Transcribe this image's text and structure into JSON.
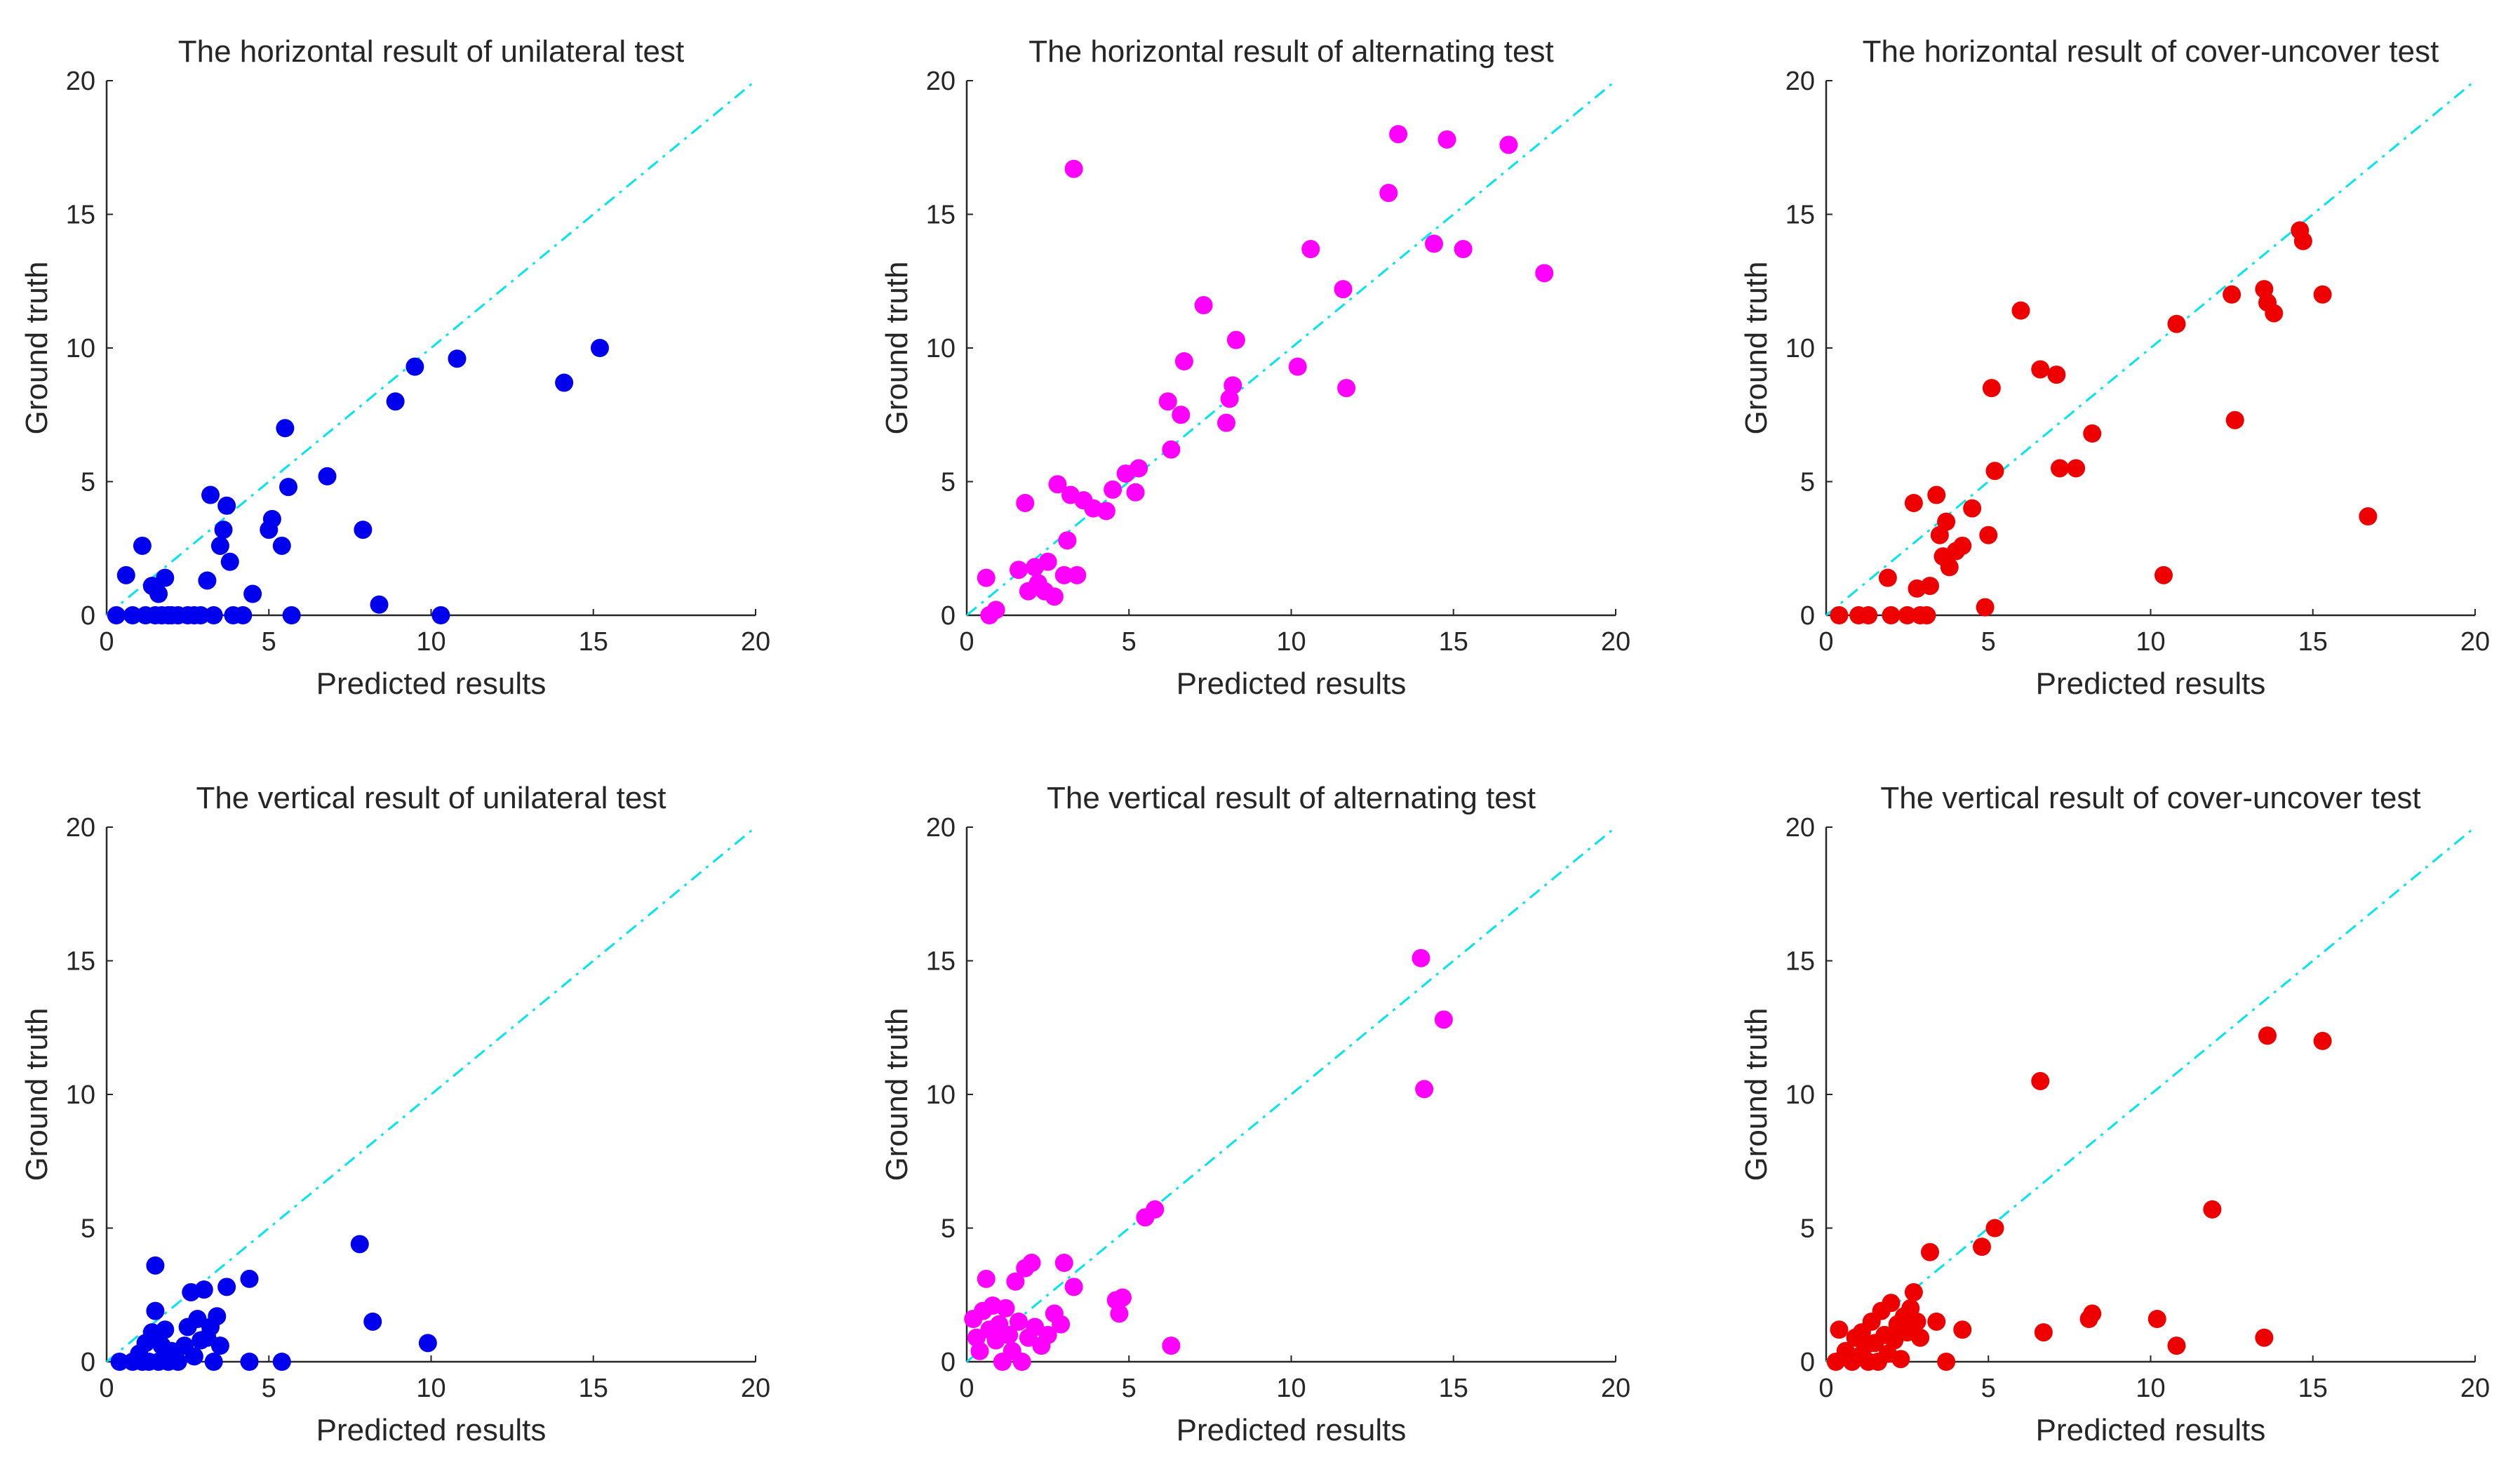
{
  "figure": {
    "xlim": [
      0,
      20
    ],
    "ylim": [
      0,
      20
    ],
    "ticks": [
      0,
      5,
      10,
      15,
      20
    ],
    "reference_line_color": "#00e5ee",
    "axis_color": "#262626"
  },
  "chart_data": [
    {
      "type": "scatter",
      "title": "The horizontal result of unilateral test",
      "xlabel": "Predicted results",
      "ylabel": "Ground truth",
      "xlim": [
        0,
        20
      ],
      "ylim": [
        0,
        20
      ],
      "color": "#0000ee",
      "points": [
        [
          0.3,
          0
        ],
        [
          0.6,
          1.5
        ],
        [
          0.8,
          0
        ],
        [
          1.1,
          2.6
        ],
        [
          1.2,
          0
        ],
        [
          1.4,
          1.1
        ],
        [
          1.5,
          0
        ],
        [
          1.6,
          0.8
        ],
        [
          1.7,
          0
        ],
        [
          1.8,
          1.4
        ],
        [
          1.9,
          0
        ],
        [
          2.0,
          0
        ],
        [
          2.2,
          0
        ],
        [
          2.5,
          0
        ],
        [
          2.7,
          0
        ],
        [
          2.9,
          0
        ],
        [
          3.1,
          1.3
        ],
        [
          3.2,
          4.5
        ],
        [
          3.3,
          0
        ],
        [
          3.5,
          2.6
        ],
        [
          3.6,
          3.2
        ],
        [
          3.7,
          4.1
        ],
        [
          3.8,
          2.0
        ],
        [
          3.9,
          0
        ],
        [
          4.2,
          0
        ],
        [
          4.5,
          0.8
        ],
        [
          5.0,
          3.2
        ],
        [
          5.1,
          3.6
        ],
        [
          5.4,
          2.6
        ],
        [
          5.5,
          7.0
        ],
        [
          5.6,
          4.8
        ],
        [
          5.7,
          0
        ],
        [
          6.8,
          5.2
        ],
        [
          7.9,
          3.2
        ],
        [
          8.4,
          0.4
        ],
        [
          8.9,
          8.0
        ],
        [
          9.5,
          9.3
        ],
        [
          10.3,
          0
        ],
        [
          10.8,
          9.6
        ],
        [
          14.1,
          8.7
        ],
        [
          15.2,
          10.0
        ]
      ]
    },
    {
      "type": "scatter",
      "title": "The horizontal result of alternating test",
      "xlabel": "Predicted results",
      "ylabel": "Ground truth",
      "xlim": [
        0,
        20
      ],
      "ylim": [
        0,
        20
      ],
      "color": "#ff00ff",
      "points": [
        [
          0.6,
          1.4
        ],
        [
          0.7,
          0
        ],
        [
          0.9,
          0.2
        ],
        [
          1.6,
          1.7
        ],
        [
          1.8,
          4.2
        ],
        [
          1.9,
          0.9
        ],
        [
          2.1,
          1.8
        ],
        [
          2.2,
          1.2
        ],
        [
          2.4,
          0.9
        ],
        [
          2.5,
          2.0
        ],
        [
          2.7,
          0.7
        ],
        [
          2.8,
          4.9
        ],
        [
          3.0,
          1.5
        ],
        [
          3.1,
          2.8
        ],
        [
          3.2,
          4.5
        ],
        [
          3.3,
          16.7
        ],
        [
          3.4,
          1.5
        ],
        [
          3.6,
          4.3
        ],
        [
          3.9,
          4.0
        ],
        [
          4.3,
          3.9
        ],
        [
          4.5,
          4.7
        ],
        [
          4.9,
          5.3
        ],
        [
          5.2,
          4.6
        ],
        [
          5.3,
          5.5
        ],
        [
          6.2,
          8.0
        ],
        [
          6.3,
          6.2
        ],
        [
          6.6,
          7.5
        ],
        [
          6.7,
          9.5
        ],
        [
          7.3,
          11.6
        ],
        [
          8.0,
          7.2
        ],
        [
          8.1,
          8.1
        ],
        [
          8.2,
          8.6
        ],
        [
          8.3,
          10.3
        ],
        [
          10.2,
          9.3
        ],
        [
          10.6,
          13.7
        ],
        [
          11.6,
          12.2
        ],
        [
          11.7,
          8.5
        ],
        [
          13.0,
          15.8
        ],
        [
          13.3,
          18.0
        ],
        [
          14.4,
          13.9
        ],
        [
          14.8,
          17.8
        ],
        [
          15.3,
          13.7
        ],
        [
          16.7,
          17.6
        ],
        [
          17.8,
          12.8
        ]
      ]
    },
    {
      "type": "scatter",
      "title": "The horizontal result of cover-uncover test",
      "xlabel": "Predicted results",
      "ylabel": "Ground truth",
      "xlim": [
        0,
        20
      ],
      "ylim": [
        0,
        20
      ],
      "color": "#ee0000",
      "points": [
        [
          0.4,
          0
        ],
        [
          1.0,
          0
        ],
        [
          1.3,
          0
        ],
        [
          1.9,
          1.4
        ],
        [
          2.0,
          0
        ],
        [
          2.5,
          0
        ],
        [
          2.7,
          4.2
        ],
        [
          2.8,
          1.0
        ],
        [
          2.9,
          0
        ],
        [
          3.1,
          0
        ],
        [
          3.2,
          1.1
        ],
        [
          3.4,
          4.5
        ],
        [
          3.5,
          3.0
        ],
        [
          3.6,
          2.2
        ],
        [
          3.7,
          3.5
        ],
        [
          3.8,
          1.8
        ],
        [
          4.0,
          2.4
        ],
        [
          4.2,
          2.6
        ],
        [
          4.5,
          4.0
        ],
        [
          4.9,
          0.3
        ],
        [
          5.0,
          3.0
        ],
        [
          5.1,
          8.5
        ],
        [
          5.2,
          5.4
        ],
        [
          6.0,
          11.4
        ],
        [
          6.6,
          9.2
        ],
        [
          7.1,
          9.0
        ],
        [
          7.2,
          5.5
        ],
        [
          7.7,
          5.5
        ],
        [
          8.2,
          6.8
        ],
        [
          10.4,
          1.5
        ],
        [
          10.8,
          10.9
        ],
        [
          12.5,
          12.0
        ],
        [
          12.6,
          7.3
        ],
        [
          13.5,
          12.2
        ],
        [
          13.6,
          11.7
        ],
        [
          13.8,
          11.3
        ],
        [
          14.6,
          14.4
        ],
        [
          14.7,
          14.0
        ],
        [
          15.3,
          12.0
        ],
        [
          16.7,
          3.7
        ]
      ]
    },
    {
      "type": "scatter",
      "title": "The vertical result of unilateral test",
      "xlabel": "Predicted results",
      "ylabel": "Ground truth",
      "xlim": [
        0,
        20
      ],
      "ylim": [
        0,
        20
      ],
      "color": "#0000ee",
      "points": [
        [
          0.4,
          0
        ],
        [
          0.8,
          0
        ],
        [
          1.0,
          0.3
        ],
        [
          1.1,
          0
        ],
        [
          1.2,
          0.7
        ],
        [
          1.3,
          0
        ],
        [
          1.4,
          1.1
        ],
        [
          1.5,
          3.6
        ],
        [
          1.5,
          1.9
        ],
        [
          1.6,
          0
        ],
        [
          1.7,
          0.6
        ],
        [
          1.8,
          1.2
        ],
        [
          1.9,
          0
        ],
        [
          2.0,
          0.4
        ],
        [
          2.2,
          0
        ],
        [
          2.4,
          0.6
        ],
        [
          2.5,
          1.3
        ],
        [
          2.6,
          2.6
        ],
        [
          2.7,
          0.2
        ],
        [
          2.8,
          1.6
        ],
        [
          2.9,
          0.8
        ],
        [
          3.0,
          2.7
        ],
        [
          3.1,
          0.9
        ],
        [
          3.2,
          1.3
        ],
        [
          3.3,
          0
        ],
        [
          3.4,
          1.7
        ],
        [
          3.5,
          0.6
        ],
        [
          3.7,
          2.8
        ],
        [
          4.4,
          3.1
        ],
        [
          4.4,
          0
        ],
        [
          5.4,
          0
        ],
        [
          7.8,
          4.4
        ],
        [
          8.2,
          1.5
        ],
        [
          9.9,
          0.7
        ]
      ]
    },
    {
      "type": "scatter",
      "title": "The vertical result of alternating test",
      "xlabel": "Predicted results",
      "ylabel": "Ground truth",
      "xlim": [
        0,
        20
      ],
      "ylim": [
        0,
        20
      ],
      "color": "#ff00ff",
      "points": [
        [
          0.2,
          1.6
        ],
        [
          0.3,
          0.9
        ],
        [
          0.4,
          0.4
        ],
        [
          0.5,
          1.9
        ],
        [
          0.6,
          3.1
        ],
        [
          0.7,
          1.2
        ],
        [
          0.8,
          2.1
        ],
        [
          0.9,
          0.8
        ],
        [
          1.0,
          1.4
        ],
        [
          1.1,
          0
        ],
        [
          1.2,
          2.0
        ],
        [
          1.3,
          1.0
        ],
        [
          1.4,
          0.4
        ],
        [
          1.5,
          3.0
        ],
        [
          1.6,
          1.5
        ],
        [
          1.7,
          0
        ],
        [
          1.8,
          3.5
        ],
        [
          1.9,
          0.9
        ],
        [
          2.0,
          3.7
        ],
        [
          2.1,
          1.3
        ],
        [
          2.3,
          0.6
        ],
        [
          2.5,
          1.0
        ],
        [
          2.7,
          1.8
        ],
        [
          2.9,
          1.4
        ],
        [
          3.0,
          3.7
        ],
        [
          3.3,
          2.8
        ],
        [
          4.6,
          2.3
        ],
        [
          4.7,
          1.8
        ],
        [
          4.8,
          2.4
        ],
        [
          5.5,
          5.4
        ],
        [
          5.8,
          5.7
        ],
        [
          6.3,
          0.6
        ],
        [
          14.0,
          15.1
        ],
        [
          14.1,
          10.2
        ],
        [
          14.7,
          12.8
        ]
      ]
    },
    {
      "type": "scatter",
      "title": "The vertical result of cover-uncover test",
      "xlabel": "Predicted results",
      "ylabel": "Ground truth",
      "xlim": [
        0,
        20
      ],
      "ylim": [
        0,
        20
      ],
      "color": "#ee0000",
      "points": [
        [
          0.3,
          0
        ],
        [
          0.4,
          1.2
        ],
        [
          0.6,
          0.4
        ],
        [
          0.8,
          0
        ],
        [
          0.9,
          0.9
        ],
        [
          1.0,
          0.2
        ],
        [
          1.1,
          1.1
        ],
        [
          1.2,
          0.6
        ],
        [
          1.3,
          0
        ],
        [
          1.4,
          1.5
        ],
        [
          1.5,
          0.7
        ],
        [
          1.6,
          0
        ],
        [
          1.7,
          1.9
        ],
        [
          1.8,
          1.0
        ],
        [
          1.9,
          0.3
        ],
        [
          2.0,
          2.2
        ],
        [
          2.1,
          0.8
        ],
        [
          2.2,
          1.4
        ],
        [
          2.3,
          0.1
        ],
        [
          2.4,
          1.7
        ],
        [
          2.5,
          1.1
        ],
        [
          2.6,
          2.0
        ],
        [
          2.7,
          2.6
        ],
        [
          2.8,
          1.5
        ],
        [
          2.9,
          0.9
        ],
        [
          3.2,
          4.1
        ],
        [
          3.4,
          1.5
        ],
        [
          3.7,
          0
        ],
        [
          4.2,
          1.2
        ],
        [
          4.8,
          4.3
        ],
        [
          5.2,
          5.0
        ],
        [
          6.6,
          10.5
        ],
        [
          6.7,
          1.1
        ],
        [
          8.1,
          1.6
        ],
        [
          8.2,
          1.8
        ],
        [
          10.2,
          1.6
        ],
        [
          10.8,
          0.6
        ],
        [
          11.9,
          5.7
        ],
        [
          13.5,
          0.9
        ],
        [
          13.6,
          12.2
        ],
        [
          15.3,
          12.0
        ]
      ]
    }
  ]
}
